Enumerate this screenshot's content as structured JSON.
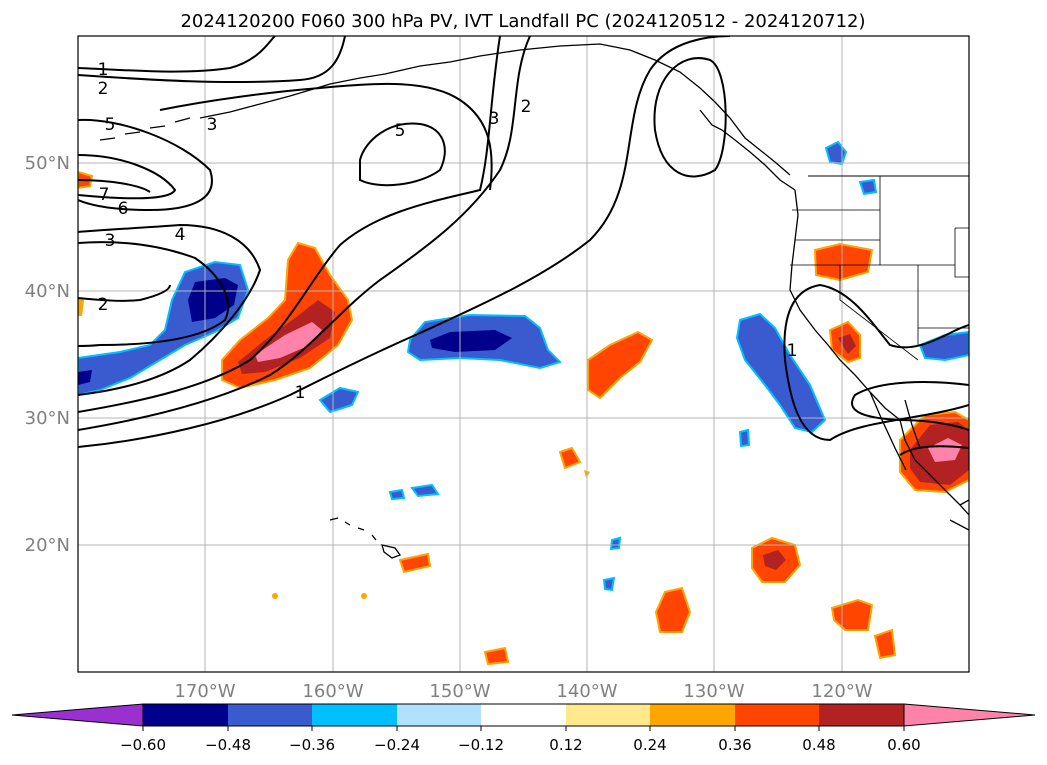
{
  "title": "2024120200 F060 300 hPa PV, IVT Landfall PC (2024120512 - 2024120712)",
  "lat_labels": [
    "50°N",
    "40°N",
    "30°N",
    "20°N"
  ],
  "lon_labels": [
    "170°W",
    "160°W",
    "150°W",
    "140°W",
    "130°W",
    "120°W"
  ],
  "colorbar": {
    "ticks": [
      "−0.60",
      "−0.48",
      "−0.36",
      "−0.24",
      "−0.12",
      "0.12",
      "0.24",
      "0.36",
      "0.48",
      "0.60"
    ],
    "colors": [
      "#9b30d0",
      "#00008b",
      "#3a5bcf",
      "#00bfff",
      "#b0e2ff",
      "#ffffff",
      "#ffe98c",
      "#ffa500",
      "#ff4500",
      "#b22222",
      "#ff82ab"
    ]
  },
  "contour_labels": {
    "c1a": "1",
    "c2a": "2",
    "c5a": "5",
    "c3a": "3",
    "c5b": "5",
    "c3b": "3",
    "c2b": "2",
    "c7": "7",
    "c6": "6",
    "c3c": "3",
    "c4": "4",
    "c2c": "2",
    "c1b": "1",
    "c1c": "1"
  },
  "colors": {
    "neg_dark": "#00008b",
    "neg_mid": "#3a5bcf",
    "neg_light": "#00bfff",
    "pos_yellow": "#ffe98c",
    "pos_orange": "#ffa500",
    "pos_red": "#ff4500",
    "pos_dark": "#b22222",
    "pos_pink": "#ff82ab"
  }
}
